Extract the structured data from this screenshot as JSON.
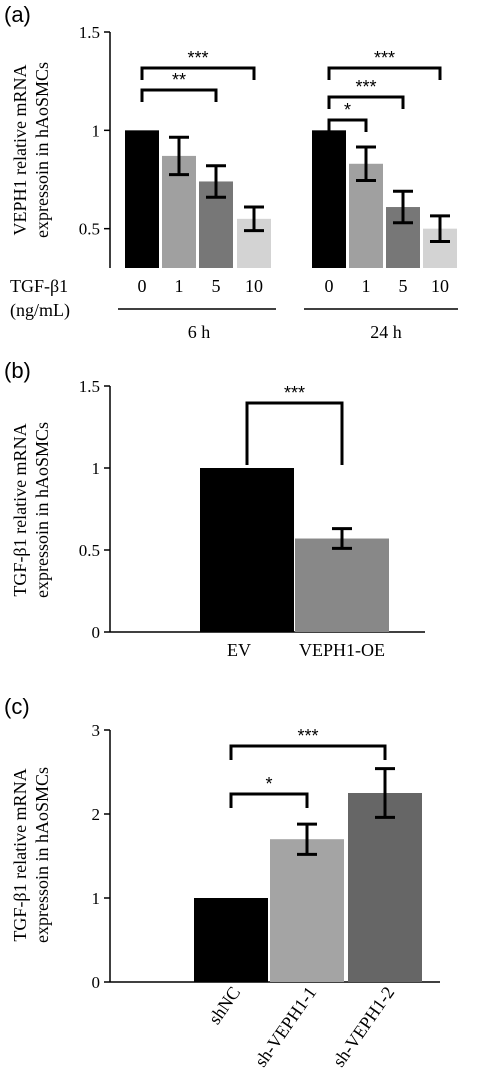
{
  "chart_data": [
    {
      "panel": "(a)",
      "type": "bar",
      "ylabel_lines": [
        "VEPH1 relative mRNA",
        "expressoin in hAoSMCs"
      ],
      "ylim": [
        0.3,
        1.5
      ],
      "yticks": [
        0.5,
        1,
        1.5
      ],
      "ytick_labels": [
        "0.5",
        "1",
        "1.5"
      ],
      "x_row_label": "TGF-β1",
      "x_row_unit": "(ng/mL)",
      "colors": [
        "#000000",
        "#a0a0a0",
        "#777777",
        "#d3d3d3"
      ],
      "groups": [
        {
          "label": "6 h",
          "categories": [
            "0",
            "1",
            "5",
            "10"
          ],
          "values": [
            1.0,
            0.87,
            0.74,
            0.55
          ],
          "errors": [
            0,
            0.095,
            0.08,
            0.06
          ],
          "comparisons": [
            {
              "from": 0,
              "to": 2,
              "text": "**"
            },
            {
              "from": 0,
              "to": 3,
              "text": "***"
            }
          ]
        },
        {
          "label": "24 h",
          "categories": [
            "0",
            "1",
            "5",
            "10"
          ],
          "values": [
            1.0,
            0.83,
            0.61,
            0.5
          ],
          "errors": [
            0,
            0.085,
            0.08,
            0.065
          ],
          "comparisons": [
            {
              "from": 0,
              "to": 1,
              "text": "*"
            },
            {
              "from": 0,
              "to": 2,
              "text": "***"
            },
            {
              "from": 0,
              "to": 3,
              "text": "***"
            }
          ]
        }
      ]
    },
    {
      "panel": "(b)",
      "type": "bar",
      "ylabel_lines": [
        "TGF-β1 relative mRNA",
        "expressoin in hAoSMCs"
      ],
      "ylim": [
        0,
        1.5
      ],
      "yticks": [
        0,
        0.5,
        1,
        1.5
      ],
      "ytick_labels": [
        "0",
        "0.5",
        "1",
        "1.5"
      ],
      "categories": [
        "EV",
        "VEPH1-OE"
      ],
      "values": [
        1.0,
        0.57
      ],
      "errors": [
        0,
        0.06
      ],
      "colors": [
        "#000000",
        "#888888"
      ],
      "comparisons": [
        {
          "from": 0,
          "to": 1,
          "text": "***"
        }
      ]
    },
    {
      "panel": "(c)",
      "type": "bar",
      "ylabel_lines": [
        "TGF-β1 relative mRNA",
        "expressoin in hAoSMCs"
      ],
      "ylim": [
        0,
        3
      ],
      "yticks": [
        0,
        1,
        2,
        3
      ],
      "ytick_labels": [
        "0",
        "1",
        "2",
        "3"
      ],
      "categories": [
        "shNC",
        "sh-VEPH1-1",
        "sh-VEPH1-2"
      ],
      "values": [
        1.0,
        1.7,
        2.25
      ],
      "errors": [
        0,
        0.18,
        0.29
      ],
      "colors": [
        "#000000",
        "#a4a4a4",
        "#666666"
      ],
      "comparisons": [
        {
          "from": 0,
          "to": 1,
          "text": "*"
        },
        {
          "from": 0,
          "to": 2,
          "text": "***"
        }
      ]
    }
  ]
}
